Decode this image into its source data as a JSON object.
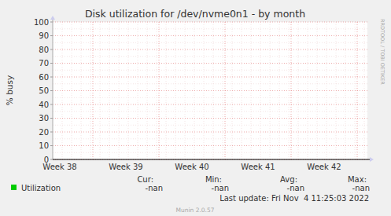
{
  "chart_data": {
    "type": "line",
    "title": "Disk utilization for /dev/nvme0n1 - by month",
    "y_label": "% busy",
    "categories": [
      "Week 38",
      "Week 39",
      "Week 40",
      "Week 41",
      "Week 42"
    ],
    "series": [
      {
        "name": "Utilization",
        "color": "#00cc00",
        "values": [
          null,
          null,
          null,
          null,
          null
        ]
      }
    ],
    "ylim": [
      0,
      100
    ],
    "yticks": [
      0,
      10,
      20,
      30,
      40,
      50,
      60,
      70,
      80,
      90,
      100
    ],
    "grid": true,
    "legend_stats": {
      "headers": [
        "Cur:",
        "Min:",
        "Avg:",
        "Max:"
      ],
      "values": [
        "-nan",
        "-nan",
        "-nan",
        "-nan"
      ]
    },
    "last_update": "Last update: Fri Nov  4 11:25:03 2022",
    "footer": "Munin 2.0.57",
    "side_text": "RRDTOOL / TOBI OETIKER"
  }
}
